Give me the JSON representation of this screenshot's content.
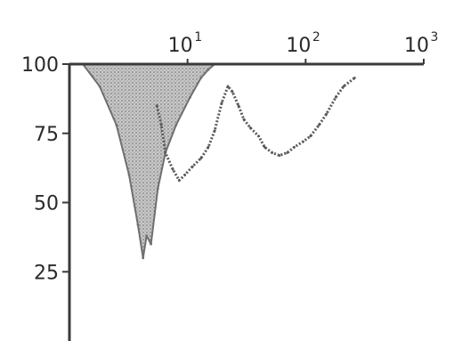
{
  "chart_data": {
    "type": "area",
    "title": "",
    "xlabel": "",
    "ylabel": "",
    "x_scale": "log",
    "xlim": [
      1,
      1000
    ],
    "ylim": [
      0,
      100
    ],
    "x_axis_position": "top",
    "y_axis_inverted": true,
    "grid": false,
    "x_ticks": [
      {
        "value": 10,
        "base": "10",
        "exp": "1"
      },
      {
        "value": 100,
        "base": "10",
        "exp": "2"
      },
      {
        "value": 1000,
        "base": "10",
        "exp": "3"
      }
    ],
    "y_ticks": [
      {
        "value": 100,
        "label": "100"
      },
      {
        "value": 75,
        "label": "75"
      },
      {
        "value": 50,
        "label": "50"
      },
      {
        "value": 25,
        "label": "25"
      }
    ],
    "series": [
      {
        "style": "filled",
        "color": "#6f6f6f",
        "x": [
          1.3,
          1.8,
          2.5,
          3.2,
          3.8,
          4.2,
          4.5,
          4.9,
          5.6,
          6.5,
          8.0,
          10.5,
          13.0,
          15.0,
          17.0
        ],
        "y": [
          100,
          92,
          78,
          60,
          42,
          30,
          38,
          35,
          55,
          68,
          78,
          88,
          95,
          98,
          100
        ]
      },
      {
        "style": "dotted",
        "color": "#5a5a5a",
        "x": [
          5.5,
          6.0,
          6.5,
          7.5,
          8.5,
          9.5,
          11,
          13,
          15,
          17,
          19.5,
          22,
          24,
          27,
          30,
          34,
          40,
          45,
          52,
          60,
          70,
          80,
          95,
          110,
          130,
          150,
          180,
          210,
          260
        ],
        "y": [
          85,
          78,
          68,
          62,
          58,
          60,
          63,
          66,
          70,
          76,
          86,
          92,
          90,
          85,
          80,
          77,
          74,
          70,
          68,
          67,
          68,
          70,
          72,
          74,
          78,
          82,
          88,
          92,
          95
        ]
      }
    ]
  }
}
